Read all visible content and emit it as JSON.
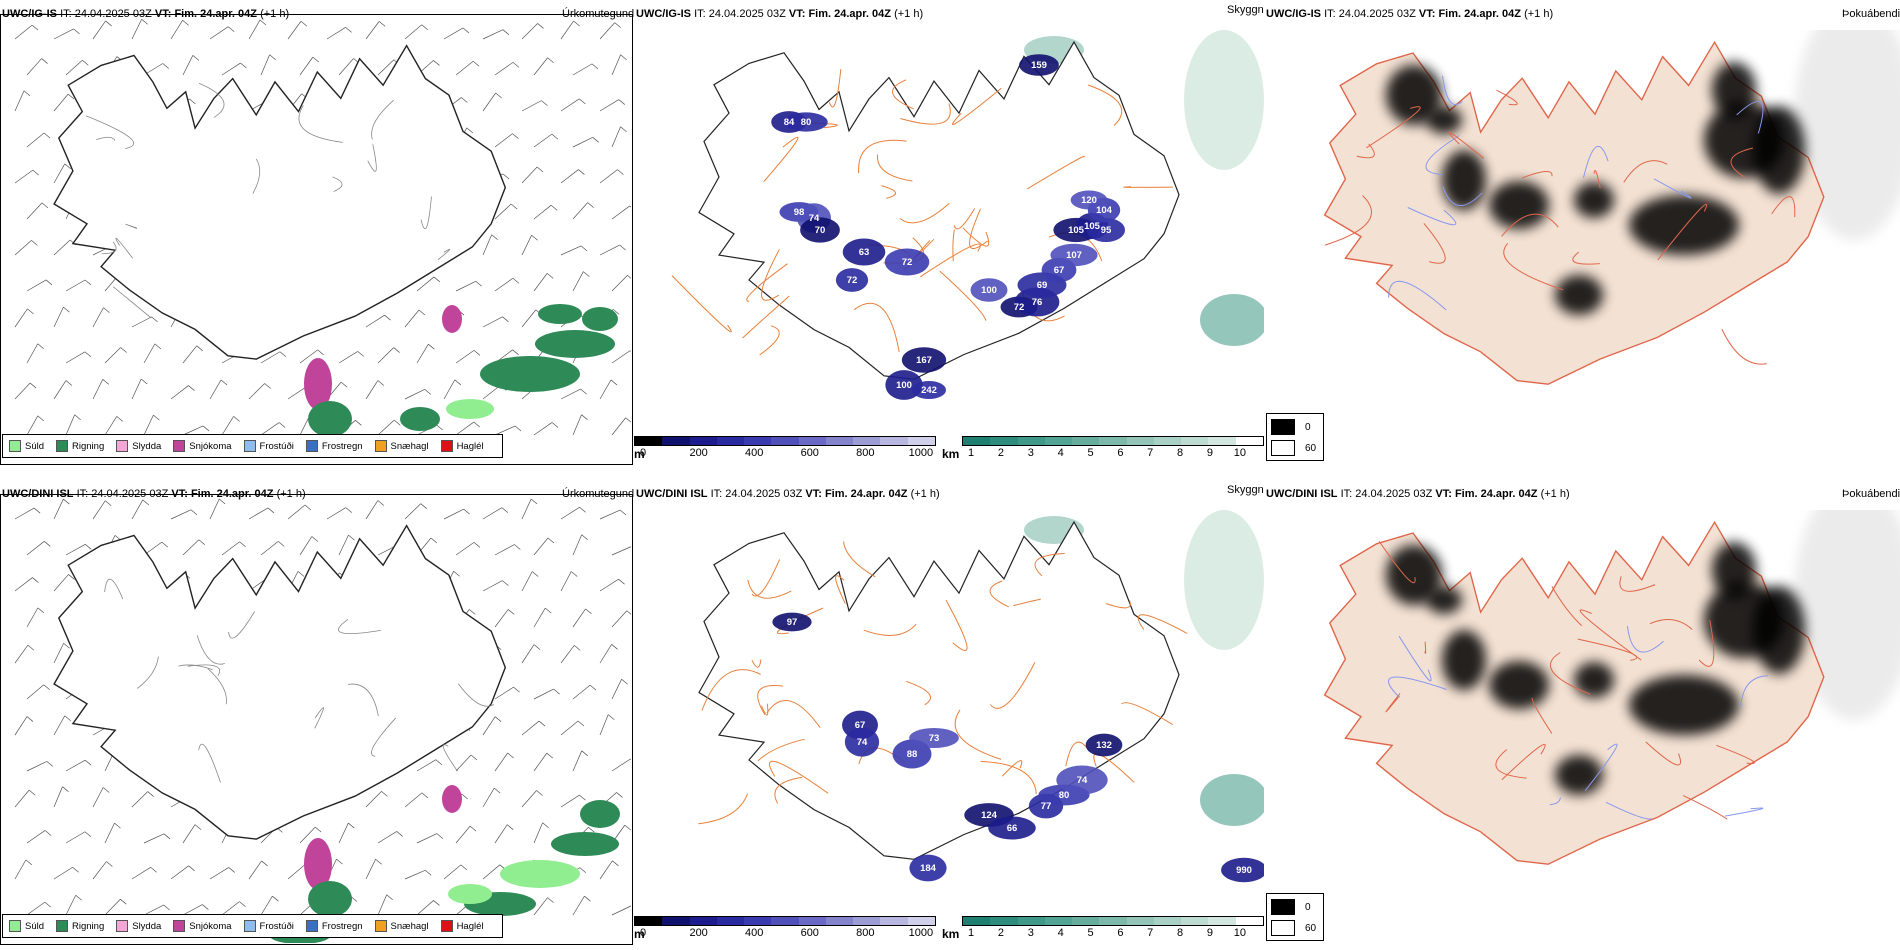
{
  "rows": [
    {
      "model": "UWC/IG-IS",
      "issue_label": "IT:",
      "issue_time": "24.04.2025 03Z",
      "valid_label": "VT:",
      "valid_time": "Fim. 24.apr. 04Z",
      "lead": "(+1 h)",
      "panel_titles": [
        "Úrkomutegund",
        "Skyggni",
        "Þokuábendi"
      ],
      "visibility_labels": [
        "159",
        "84",
        "80",
        "98",
        "74",
        "70",
        "63",
        "72",
        "72",
        "100",
        "72",
        "76",
        "69",
        "67",
        "107",
        "105",
        "105",
        "95",
        "104",
        "120",
        "167",
        "100",
        "242"
      ]
    },
    {
      "model": "UWC/DINI ISL",
      "issue_label": "IT:",
      "issue_time": "24.04.2025 03Z",
      "valid_label": "VT:",
      "valid_time": "Fim. 24.apr. 04Z",
      "lead": "(+1 h)",
      "panel_titles": [
        "Úrkomutegund",
        "Skyggni",
        "Þokuábendi"
      ],
      "visibility_labels": [
        "97",
        "67",
        "74",
        "88",
        "73",
        "124",
        "66",
        "77",
        "80",
        "74",
        "132",
        "990",
        "184"
      ]
    }
  ],
  "precip_legend": [
    {
      "label": "Súld",
      "color": "#90ee90"
    },
    {
      "label": "Rigning",
      "color": "#2e8b57"
    },
    {
      "label": "Slydda",
      "color": "#f4a6d7"
    },
    {
      "label": "Snjókoma",
      "color": "#c0449a"
    },
    {
      "label": "Frostúði",
      "color": "#8fbcef"
    },
    {
      "label": "Frostregn",
      "color": "#3a6fc4"
    },
    {
      "label": "Snæhagl",
      "color": "#f0a020"
    },
    {
      "label": "Haglél",
      "color": "#e01010"
    }
  ],
  "cloud_base_scale": {
    "unit": "m",
    "ticks": [
      "0",
      "200",
      "400",
      "600",
      "800",
      "1000"
    ],
    "colors": [
      "#000000",
      "#10106e",
      "#1c1c8c",
      "#2a2aa0",
      "#3b3bb0",
      "#5050bb",
      "#6a6ac4",
      "#8484cd",
      "#9d9dd6",
      "#b7b7e0",
      "#d0d0ea"
    ]
  },
  "visibility_scale": {
    "unit": "km",
    "ticks": [
      "1",
      "2",
      "3",
      "4",
      "5",
      "6",
      "7",
      "8",
      "9",
      "10"
    ],
    "colors": [
      "#1e8070",
      "#2e8c7c",
      "#3f9888",
      "#53a394",
      "#68ae9f",
      "#7db9ab",
      "#93c5b7",
      "#a8d0c4",
      "#bddbd1",
      "#d2e7df",
      "#ffffff"
    ]
  },
  "fog_legend": [
    {
      "label": "0",
      "color": "#000000"
    },
    {
      "label": "60",
      "color": "#ffffff"
    }
  ]
}
